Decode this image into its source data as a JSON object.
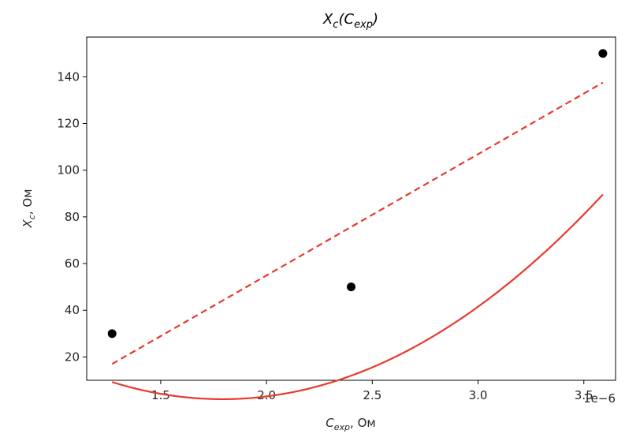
{
  "chart_data": {
    "type": "scatter",
    "title": {
      "main": "X",
      "main_sub": "c",
      "paren_main": "C",
      "paren_sub": "exp"
    },
    "xlabel": {
      "main": "C",
      "sub": "exp",
      "rest": ", Ом"
    },
    "ylabel": {
      "main": "X",
      "sub": "c",
      "rest": ", Ом"
    },
    "x_offset_text": "1e−6",
    "x_scale": 1e-06,
    "xlim": [
      1.15,
      3.65
    ],
    "ylim": [
      10,
      157
    ],
    "xticks": [
      1.5,
      2.0,
      2.5,
      3.0,
      3.5
    ],
    "xtick_labels": [
      "1.5",
      "2.0",
      "2.5",
      "3.0",
      "3.5"
    ],
    "yticks": [
      20,
      40,
      60,
      80,
      100,
      120,
      140
    ],
    "ytick_labels": [
      "20",
      "40",
      "60",
      "80",
      "100",
      "120",
      "140"
    ],
    "grid": false,
    "series": [
      {
        "kind": "points",
        "color": "#000000",
        "x": [
          1.27,
          2.4,
          3.59
        ],
        "y": [
          30,
          50,
          150
        ]
      },
      {
        "kind": "quadratic-fit",
        "color": "#e8392b",
        "style": "solid",
        "x_range": [
          1.27,
          3.59
        ],
        "coefficients": [
          88.8,
          -97.03,
          27.09
        ]
      },
      {
        "kind": "linear-fit",
        "color": "#e8392b",
        "style": "dashed",
        "x": [
          1.27,
          3.59
        ],
        "y": [
          17,
          137.5
        ]
      }
    ]
  }
}
